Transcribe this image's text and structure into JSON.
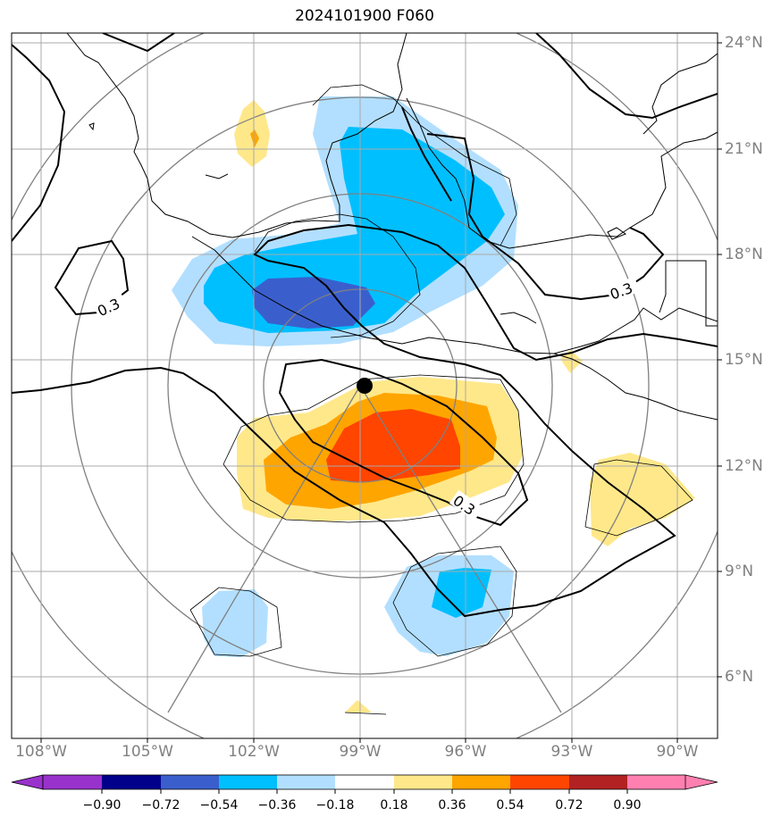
{
  "title": "2024101900 F060",
  "lon_labels": [
    "108°W",
    "105°W",
    "102°W",
    "99°W",
    "96°W",
    "93°W",
    "90°W"
  ],
  "lat_labels": [
    "24°N",
    "21°N",
    "18°N",
    "15°N",
    "12°N",
    "9°N",
    "6°N"
  ],
  "contour_labels": [
    "0.3",
    "0.3",
    "0.3"
  ],
  "colorbar": {
    "colors": [
      "#9932cc",
      "#00008b",
      "#3a5fcd",
      "#00bfff",
      "#b2dfff",
      "#ffffff",
      "#ffe88a",
      "#ffa500",
      "#ff4500",
      "#b22222",
      "#ff80b0"
    ],
    "ticks": [
      "−0.90",
      "−0.72",
      "−0.54",
      "−0.36",
      "−0.18",
      "0.18",
      "0.36",
      "0.54",
      "0.72",
      "0.90"
    ]
  },
  "colors": {
    "grid": "#a9a9a9",
    "axis_labels": "#808080",
    "range_rings": "#808080"
  },
  "marker": "storm-center-dot"
}
